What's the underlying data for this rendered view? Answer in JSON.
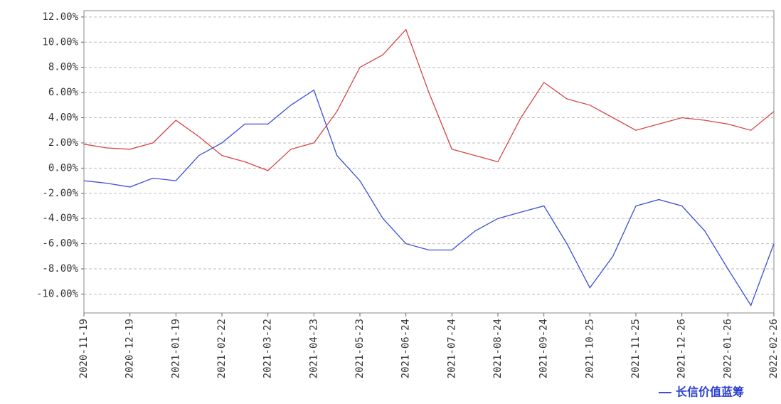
{
  "chart_data": {
    "type": "line",
    "categories": [
      "2020-11-19",
      null,
      "2020-12-19",
      null,
      "2021-01-19",
      null,
      "2021-02-22",
      null,
      "2021-03-22",
      null,
      "2021-04-23",
      null,
      "2021-05-23",
      null,
      "2021-06-24",
      null,
      "2021-07-24",
      null,
      "2021-08-24",
      null,
      "2021-09-24",
      null,
      "2021-10-25",
      null,
      "2021-11-25",
      null,
      "2021-12-26",
      null,
      "2022-01-26",
      null,
      "2022-02-26"
    ],
    "series": [
      {
        "color": "#d64545",
        "values": [
          1.9,
          1.6,
          1.5,
          2.0,
          3.8,
          2.5,
          1.0,
          0.5,
          -0.2,
          1.5,
          2.0,
          4.5,
          8.0,
          9.0,
          11.0,
          6.0,
          1.5,
          1.0,
          0.5,
          4.0,
          6.8,
          5.5,
          5.0,
          4.0,
          3.0,
          3.5,
          4.0,
          3.8,
          3.5,
          3.0,
          4.5
        ]
      },
      {
        "name": "长信价值蓝筹",
        "color": "#3b4fd8",
        "values": [
          -1.0,
          -1.2,
          -1.5,
          -0.8,
          -1.0,
          1.0,
          2.0,
          3.5,
          3.5,
          5.0,
          6.2,
          1.0,
          -1.0,
          -4.0,
          -6.0,
          -6.5,
          -6.5,
          -5.0,
          -4.0,
          -3.5,
          -3.0,
          -6.0,
          -9.5,
          -7.0,
          -3.0,
          -2.5,
          -3.0,
          -5.0,
          -8.0,
          -10.9,
          -6.0
        ]
      }
    ],
    "ylim": [
      -11.5,
      12.5
    ],
    "yticks": [
      {
        "value": -10,
        "label": "-10.00%"
      },
      {
        "value": -8,
        "label": "-8.00%"
      },
      {
        "value": -6,
        "label": "-6.00%"
      },
      {
        "value": -4,
        "label": "-4.00%"
      },
      {
        "value": -2,
        "label": "-2.00%"
      },
      {
        "value": 0,
        "label": "0.00%"
      },
      {
        "value": 2,
        "label": "2.00%"
      },
      {
        "value": 4,
        "label": "4.00%"
      },
      {
        "value": 6,
        "label": "6.00%"
      },
      {
        "value": 8,
        "label": "8.00%"
      },
      {
        "value": 10,
        "label": "10.00%"
      },
      {
        "value": 12,
        "label": "12.00%"
      }
    ],
    "grid": true,
    "legend": "bottom-right"
  }
}
